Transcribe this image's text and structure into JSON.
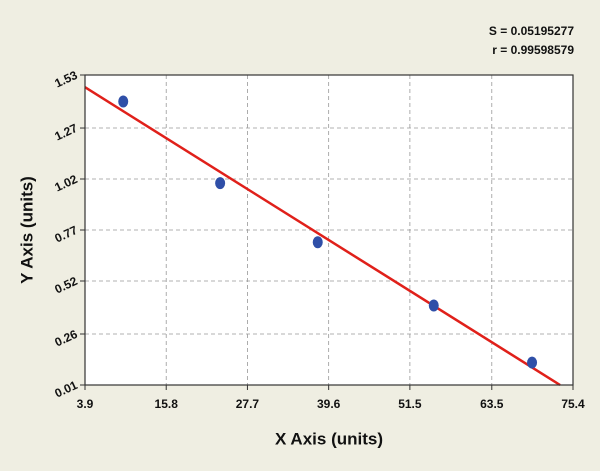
{
  "chart_data": {
    "type": "scatter",
    "x": [
      9.5,
      23.7,
      38.0,
      55.0,
      69.4
    ],
    "values": [
      1.4,
      1.0,
      0.71,
      0.4,
      0.12
    ],
    "color": "#2f4fa8",
    "fit_line": {
      "x": [
        3.9,
        73.5
      ],
      "y": [
        1.47,
        0.01
      ],
      "color": "#e0201a"
    },
    "x_label": "X Axis (units)",
    "y_label": "Y Axis (units)",
    "annotations": [
      "S = 0.05195277",
      "r = 0.99598579"
    ],
    "xlim": [
      3.9,
      75.4
    ],
    "ylim": [
      0.01,
      1.53
    ],
    "xticks": [
      3.9,
      15.8,
      27.7,
      39.6,
      51.5,
      63.5,
      75.4
    ],
    "yticks": [
      0.01,
      0.26,
      0.52,
      0.77,
      1.02,
      1.27,
      1.53
    ],
    "grid": true
  }
}
